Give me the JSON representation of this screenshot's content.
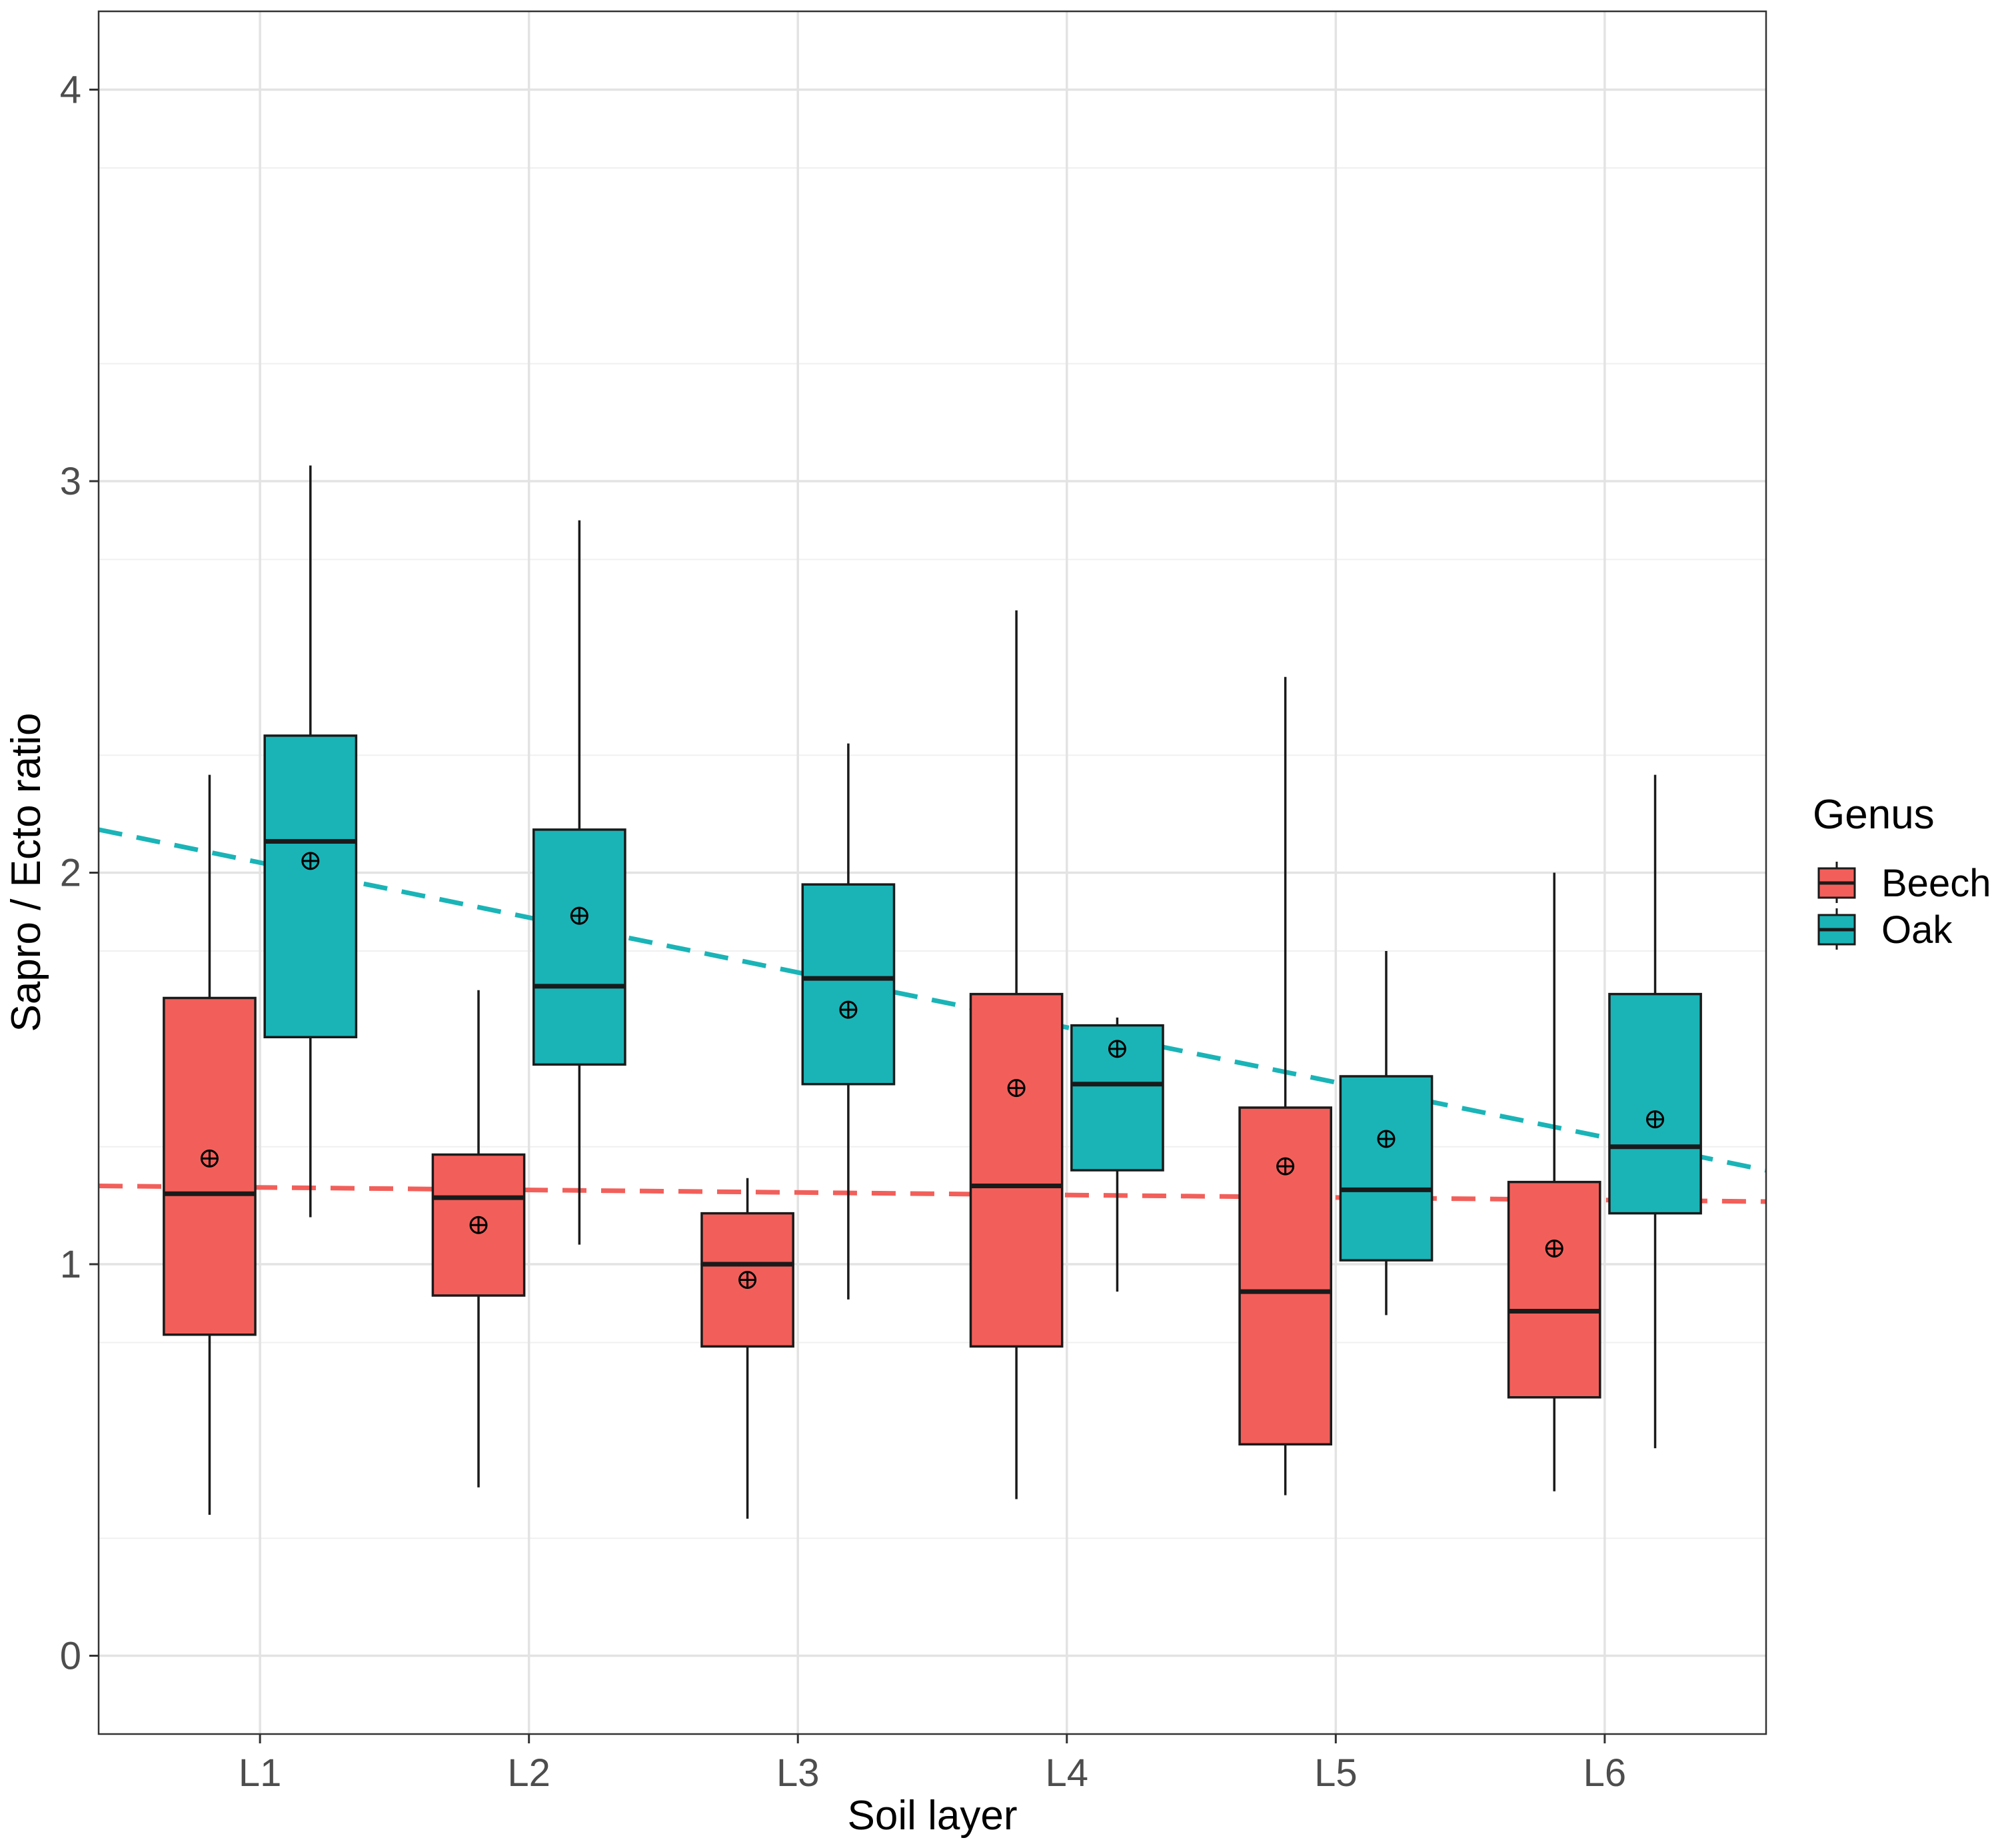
{
  "chart_data": {
    "type": "box",
    "title": "",
    "xlabel": "Soil layer",
    "ylabel": "Sapro / Ecto ratio",
    "ylim": [
      -0.2,
      4.2
    ],
    "yticks": [
      0,
      1,
      2,
      3,
      4
    ],
    "yticks_labels": [
      "0",
      "1",
      "2",
      "3",
      "4"
    ],
    "categories": [
      "L1",
      "L2",
      "L3",
      "L4",
      "L5",
      "L6"
    ],
    "grid": true,
    "legend": {
      "title": "Genus",
      "position": "right",
      "entries": [
        "Beech",
        "Oak"
      ]
    },
    "series": [
      {
        "name": "Beech",
        "color": "#F25F5A",
        "boxes": [
          {
            "category": "L1",
            "min": 0.36,
            "q1": 0.82,
            "median": 1.18,
            "q3": 1.68,
            "max": 2.25,
            "mean": 1.27
          },
          {
            "category": "L2",
            "min": 0.43,
            "q1": 0.92,
            "median": 1.17,
            "q3": 1.28,
            "max": 1.7,
            "mean": 1.1
          },
          {
            "category": "L3",
            "min": 0.35,
            "q1": 0.79,
            "median": 1.0,
            "q3": 1.13,
            "max": 1.22,
            "mean": 0.96
          },
          {
            "category": "L4",
            "min": 0.4,
            "q1": 0.79,
            "median": 1.2,
            "q3": 1.69,
            "max": 2.67,
            "mean": 1.45
          },
          {
            "category": "L5",
            "min": 0.41,
            "q1": 0.54,
            "median": 0.93,
            "q3": 1.4,
            "max": 2.5,
            "mean": 1.25
          },
          {
            "category": "L6",
            "min": 0.42,
            "q1": 0.66,
            "median": 0.88,
            "q3": 1.21,
            "max": 2.0,
            "mean": 1.04
          }
        ],
        "trend": {
          "style": "dashed",
          "start": 1.2,
          "end": 1.16
        }
      },
      {
        "name": "Oak",
        "color": "#1AB4B7",
        "boxes": [
          {
            "category": "L1",
            "min": 1.12,
            "q1": 1.58,
            "median": 2.08,
            "q3": 2.35,
            "max": 3.04,
            "mean": 2.03
          },
          {
            "category": "L2",
            "min": 1.05,
            "q1": 1.51,
            "median": 1.71,
            "q3": 2.11,
            "max": 2.9,
            "mean": 1.89
          },
          {
            "category": "L3",
            "min": 0.91,
            "q1": 1.46,
            "median": 1.73,
            "q3": 1.97,
            "max": 2.33,
            "mean": 1.65
          },
          {
            "category": "L4",
            "min": 0.93,
            "q1": 1.24,
            "median": 1.46,
            "q3": 1.61,
            "max": 1.63,
            "mean": 1.55
          },
          {
            "category": "L5",
            "min": 0.87,
            "q1": 1.01,
            "median": 1.19,
            "q3": 1.48,
            "max": 1.8,
            "mean": 1.32
          },
          {
            "category": "L6",
            "min": 0.53,
            "q1": 1.13,
            "median": 1.3,
            "q3": 1.69,
            "max": 2.25,
            "mean": 1.37
          }
        ],
        "trend": {
          "style": "dashed",
          "start": 2.11,
          "end": 1.24
        }
      }
    ]
  }
}
